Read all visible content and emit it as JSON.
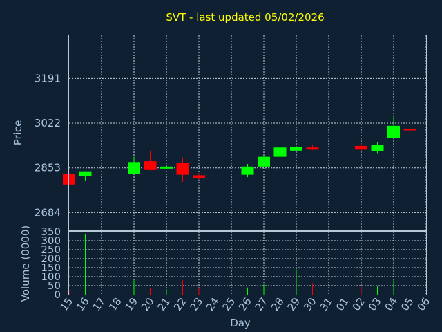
{
  "chart_data": {
    "type": "candlestick",
    "title": "SVT - last updated 05/02/2026",
    "xlabel": "Day",
    "colors": {
      "background": "#0f2033",
      "up": "#00ff00",
      "down": "#ff0000",
      "text": "#a9c4dc",
      "title": "#ffff00"
    },
    "grid": true,
    "price_panel": {
      "ylabel": "Price",
      "yticks": [
        2684,
        2853,
        3022,
        3191
      ],
      "ylim": [
        2617,
        3354
      ]
    },
    "volume_panel": {
      "ylabel": "Volume (0000)",
      "yticks": [
        0,
        50,
        100,
        150,
        200,
        250,
        300,
        350
      ],
      "ylim": [
        0,
        350
      ]
    },
    "x_ticks": [
      "15",
      "16",
      "17",
      "18",
      "19",
      "20",
      "21",
      "22",
      "23",
      "24",
      "25",
      "26",
      "27",
      "28",
      "29",
      "30",
      "31",
      "01",
      "02",
      "03",
      "04",
      "05",
      "06"
    ],
    "candles": [
      {
        "day": "15",
        "open": 2830,
        "high": 2835,
        "low": 2790,
        "close": 2790,
        "volume": 25
      },
      {
        "day": "16",
        "open": 2822,
        "high": 2840,
        "low": 2805,
        "close": 2840,
        "volume": 335
      },
      {
        "day": "19",
        "open": 2830,
        "high": 2895,
        "low": 2830,
        "close": 2875,
        "volume": 80
      },
      {
        "day": "20",
        "open": 2878,
        "high": 2918,
        "low": 2843,
        "close": 2845,
        "volume": 35
      },
      {
        "day": "21",
        "open": 2850,
        "high": 2860,
        "low": 2850,
        "close": 2858,
        "volume": 30
      },
      {
        "day": "22",
        "open": 2873,
        "high": 2892,
        "low": 2800,
        "close": 2827,
        "volume": 80
      },
      {
        "day": "23",
        "open": 2825,
        "high": 2833,
        "low": 2808,
        "close": 2815,
        "volume": 40
      },
      {
        "day": "26",
        "open": 2827,
        "high": 2868,
        "low": 2818,
        "close": 2858,
        "volume": 40
      },
      {
        "day": "27",
        "open": 2858,
        "high": 2900,
        "low": 2858,
        "close": 2895,
        "volume": 60
      },
      {
        "day": "28",
        "open": 2895,
        "high": 2932,
        "low": 2885,
        "close": 2930,
        "volume": 45
      },
      {
        "day": "29",
        "open": 2918,
        "high": 2935,
        "low": 2918,
        "close": 2932,
        "volume": 140
      },
      {
        "day": "30",
        "open": 2930,
        "high": 2938,
        "low": 2920,
        "close": 2922,
        "volume": 65
      },
      {
        "day": "02",
        "open": 2936,
        "high": 2945,
        "low": 2917,
        "close": 2922,
        "volume": 45
      },
      {
        "day": "03",
        "open": 2915,
        "high": 2950,
        "low": 2908,
        "close": 2940,
        "volume": 50
      },
      {
        "day": "04",
        "open": 2965,
        "high": 3052,
        "low": 2965,
        "close": 3012,
        "volume": 80
      },
      {
        "day": "05",
        "open": 3000,
        "high": 3008,
        "low": 2945,
        "close": 2998,
        "volume": 40
      }
    ]
  }
}
